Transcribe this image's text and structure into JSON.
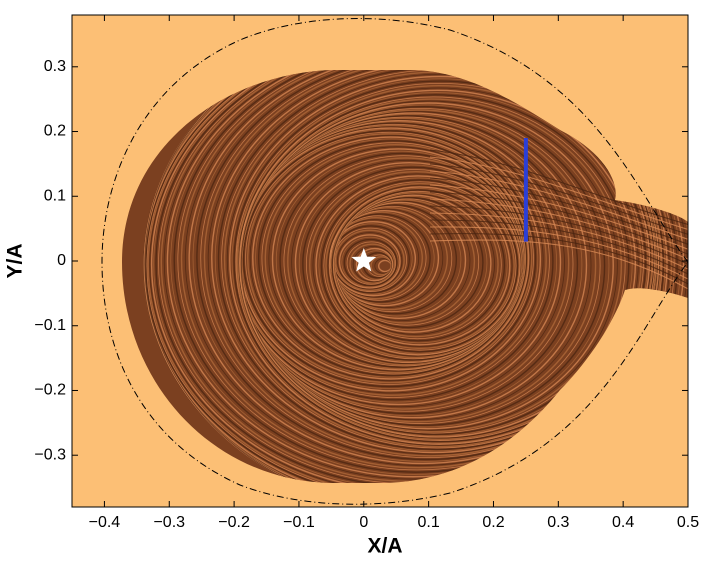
{
  "chart_data": {
    "type": "scatter",
    "xlabel": "X/A",
    "ylabel": "Y/A",
    "xlim": [
      -0.45,
      0.5
    ],
    "ylim": [
      -0.38,
      0.38
    ],
    "xticks": [
      {
        "value": -0.4,
        "label": "−0.4"
      },
      {
        "value": -0.3,
        "label": "−0.3"
      },
      {
        "value": -0.2,
        "label": "−0.2"
      },
      {
        "value": -0.1,
        "label": "−0.1"
      },
      0,
      0.1,
      0.2,
      0.3,
      0.4,
      0.5
    ],
    "yticks": [
      {
        "value": -0.3,
        "label": "−0.3"
      },
      {
        "value": -0.2,
        "label": "−0.2"
      },
      {
        "value": -0.1,
        "label": "−0.1"
      },
      0,
      0.1,
      0.2,
      0.3
    ],
    "background": "#fcbf75",
    "series": [
      {
        "marker": "star",
        "color": "#ffffff",
        "x": [
          0
        ],
        "y": [
          0
        ]
      },
      {
        "marker": "line",
        "color": "#2b3fd6",
        "x": [
          0.25,
          0.25
        ],
        "y": [
          0.03,
          0.19
        ]
      }
    ]
  }
}
